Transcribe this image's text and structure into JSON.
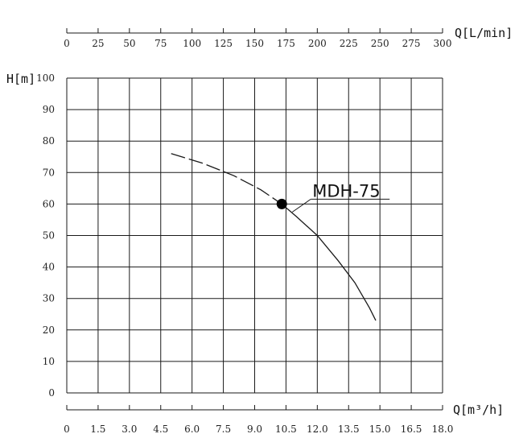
{
  "chart_data": {
    "type": "line",
    "x_bottom": {
      "label": "Q[m³/h]",
      "range": [
        0,
        18
      ],
      "ticks": [
        "0",
        "1.5",
        "3.0",
        "4.5",
        "6.0",
        "7.5",
        "9.0",
        "10.5",
        "12.0",
        "13.5",
        "15.0",
        "16.5",
        "18.0"
      ]
    },
    "x_top": {
      "label": "Q[L/min]",
      "range": [
        0,
        300
      ],
      "ticks": [
        "0",
        "25",
        "50",
        "75",
        "100",
        "125",
        "150",
        "175",
        "200",
        "225",
        "250",
        "275",
        "300"
      ]
    },
    "y": {
      "label": "H[m]",
      "range": [
        0,
        100
      ],
      "ticks": [
        "0",
        "10",
        "20",
        "30",
        "40",
        "50",
        "60",
        "70",
        "80",
        "90",
        "100"
      ]
    },
    "grid": true,
    "series": [
      {
        "name": "MDH-75",
        "dashed_points": [
          [
            5.0,
            76
          ],
          [
            6.5,
            73
          ],
          [
            8.0,
            69
          ],
          [
            9.3,
            64.5
          ],
          [
            10.3,
            60
          ]
        ],
        "solid_points": [
          [
            10.3,
            60
          ],
          [
            11.0,
            56
          ],
          [
            12.0,
            50
          ],
          [
            13.0,
            42
          ],
          [
            13.8,
            35
          ],
          [
            14.5,
            27
          ],
          [
            14.8,
            23
          ]
        ],
        "operating_point": [
          10.3,
          60
        ]
      }
    ]
  }
}
